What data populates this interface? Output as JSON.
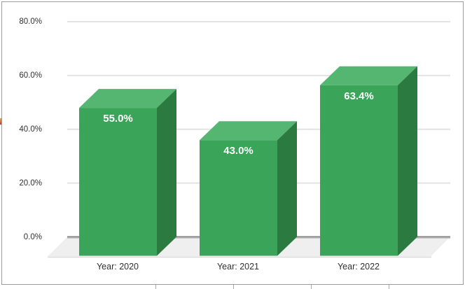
{
  "chart_data": {
    "type": "bar",
    "style": "3d-column",
    "title": "",
    "xlabel": "",
    "ylabel": "",
    "categories": [
      "Year: 2020",
      "Year: 2021",
      "Year: 2022"
    ],
    "values": [
      55.0,
      43.0,
      63.4
    ],
    "value_labels": [
      "55.0%",
      "43.0%",
      "63.4%"
    ],
    "y_ticks": [
      {
        "value": 0,
        "label": "0.0%"
      },
      {
        "value": 20,
        "label": "20.0%"
      },
      {
        "value": 40,
        "label": "40.0%"
      },
      {
        "value": 60,
        "label": "60.0%"
      },
      {
        "value": 80,
        "label": "80.0%"
      }
    ],
    "ylim": [
      0,
      80
    ],
    "grid": true,
    "legend": false,
    "colors": {
      "bar_front": "#3aa459",
      "bar_top": "#55b672",
      "bar_side": "#2b7b41",
      "value_label": "#ffffff",
      "axis_label": "#303030",
      "gridline": "#e3e3e3",
      "zero_line": "#828282",
      "zero_line_shadow": "#c8c8c8",
      "floor": "#efefef",
      "floor_edge": "#dadada",
      "chart_border": "#9c9c9c"
    }
  }
}
